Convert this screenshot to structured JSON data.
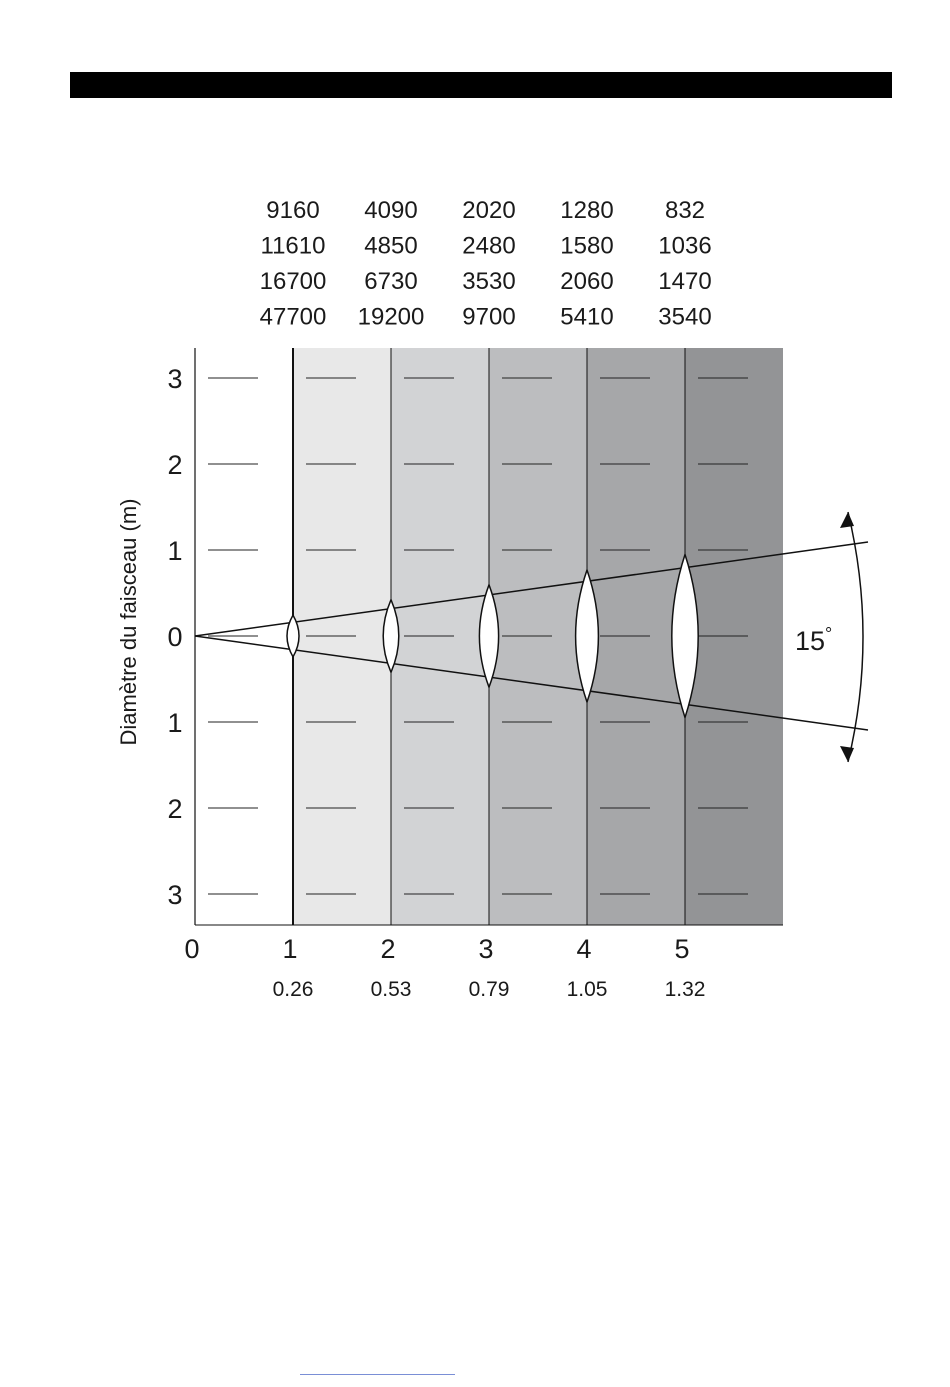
{
  "header_bar_color": "#000000",
  "lux_table": [
    [
      "9160",
      "4090",
      "2020",
      "1280",
      "832"
    ],
    [
      "11610",
      "4850",
      "2480",
      "1580",
      "1036"
    ],
    [
      "16700",
      "6730",
      "3530",
      "2060",
      "1470"
    ],
    [
      "47700",
      "19200",
      "9700",
      "5410",
      "3540"
    ]
  ],
  "chart_data": {
    "type": "beam-diagram",
    "ylabel": "Diamètre du faisceau (m)",
    "y_ticks_upper": [
      "3",
      "2",
      "1"
    ],
    "y_tick_zero": "0",
    "y_ticks_lower": [
      "1",
      "2",
      "3"
    ],
    "x_ticks": [
      "0",
      "1",
      "2",
      "3",
      "4",
      "5"
    ],
    "distances": [
      1,
      2,
      3,
      4,
      5
    ],
    "beam_diameters": [
      0.26,
      0.53,
      0.79,
      1.05,
      1.32
    ],
    "beam_diameter_labels": [
      "0.26",
      "0.53",
      "0.79",
      "1.05",
      "1.32"
    ],
    "beam_angle_label": "15",
    "beam_angle_unit": "°",
    "band_colors": [
      "#e8e8e8",
      "#d2d3d5",
      "#bcbdbf",
      "#a6a7a9",
      "#939496"
    ]
  }
}
